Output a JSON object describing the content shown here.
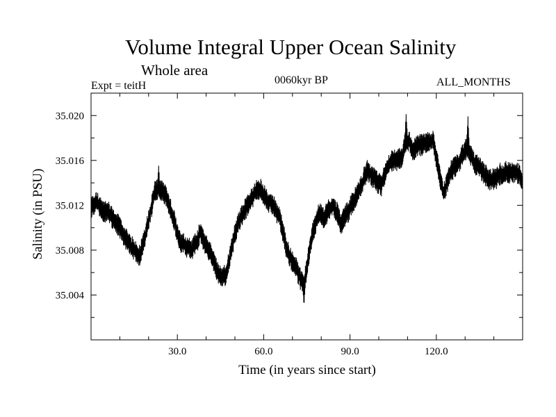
{
  "chart_data": {
    "type": "line",
    "title": "Volume Integral Upper Ocean Salinity",
    "subtitle": "Whole area",
    "annotation_left": "Expt = teitH",
    "annotation_center": "0060kyr BP",
    "annotation_right": "ALL_MONTHS",
    "xlabel": "Time (in years since start)",
    "ylabel": "Salinity (in PSU)",
    "xlim": [
      0,
      150
    ],
    "ylim": [
      35.0,
      35.022
    ],
    "x_ticks": [
      30,
      60,
      90,
      120
    ],
    "x_tick_labels": [
      "30.0",
      "60.0",
      "90.0",
      "120.0"
    ],
    "y_ticks": [
      35.004,
      35.008,
      35.012,
      35.016,
      35.02
    ],
    "y_tick_labels": [
      "35.004",
      "35.008",
      "35.012",
      "35.016",
      "35.020"
    ],
    "x_minor_step": 10,
    "y_minor_step": 0.002,
    "line_color": "#000000",
    "envelope_x": [
      0,
      2,
      4,
      6,
      10,
      14,
      17,
      20,
      22,
      23.5,
      26,
      28,
      31,
      35,
      38,
      41,
      43,
      45,
      47,
      49,
      52,
      55,
      57,
      59,
      61,
      64,
      66,
      68,
      71,
      73,
      74,
      75,
      77,
      79,
      81,
      84,
      87,
      90,
      93,
      96,
      98,
      101,
      104,
      108,
      109.5,
      112,
      116,
      119,
      121,
      122.5,
      125,
      128,
      131,
      133,
      136,
      139,
      143,
      146,
      149,
      150
    ],
    "envelope_y": [
      35.0118,
      35.0122,
      35.0115,
      35.0115,
      35.01,
      35.0082,
      35.0076,
      35.0105,
      35.0132,
      35.0135,
      35.0128,
      35.0112,
      35.0088,
      35.008,
      35.0095,
      35.008,
      35.0068,
      35.0055,
      35.0058,
      35.0085,
      35.011,
      35.0122,
      35.0131,
      35.0133,
      35.0125,
      35.0118,
      35.0105,
      35.008,
      35.0065,
      35.0053,
      35.005,
      35.0065,
      35.0095,
      35.0112,
      35.011,
      35.012,
      35.0105,
      35.0118,
      35.0132,
      35.015,
      35.0145,
      35.0138,
      35.0158,
      35.0162,
      35.0178,
      35.017,
      35.0175,
      35.0178,
      35.0148,
      35.013,
      35.015,
      35.016,
      35.0172,
      35.016,
      35.015,
      35.0142,
      35.0148,
      35.015,
      35.0148,
      35.014
    ],
    "envelope_halfwidth": 0.0008,
    "notable_extrema": [
      {
        "x": 23.5,
        "y": 35.0155
      },
      {
        "x": 74,
        "y": 35.0031
      },
      {
        "x": 109.5,
        "y": 35.0201
      },
      {
        "x": 131,
        "y": 35.0199
      }
    ]
  }
}
